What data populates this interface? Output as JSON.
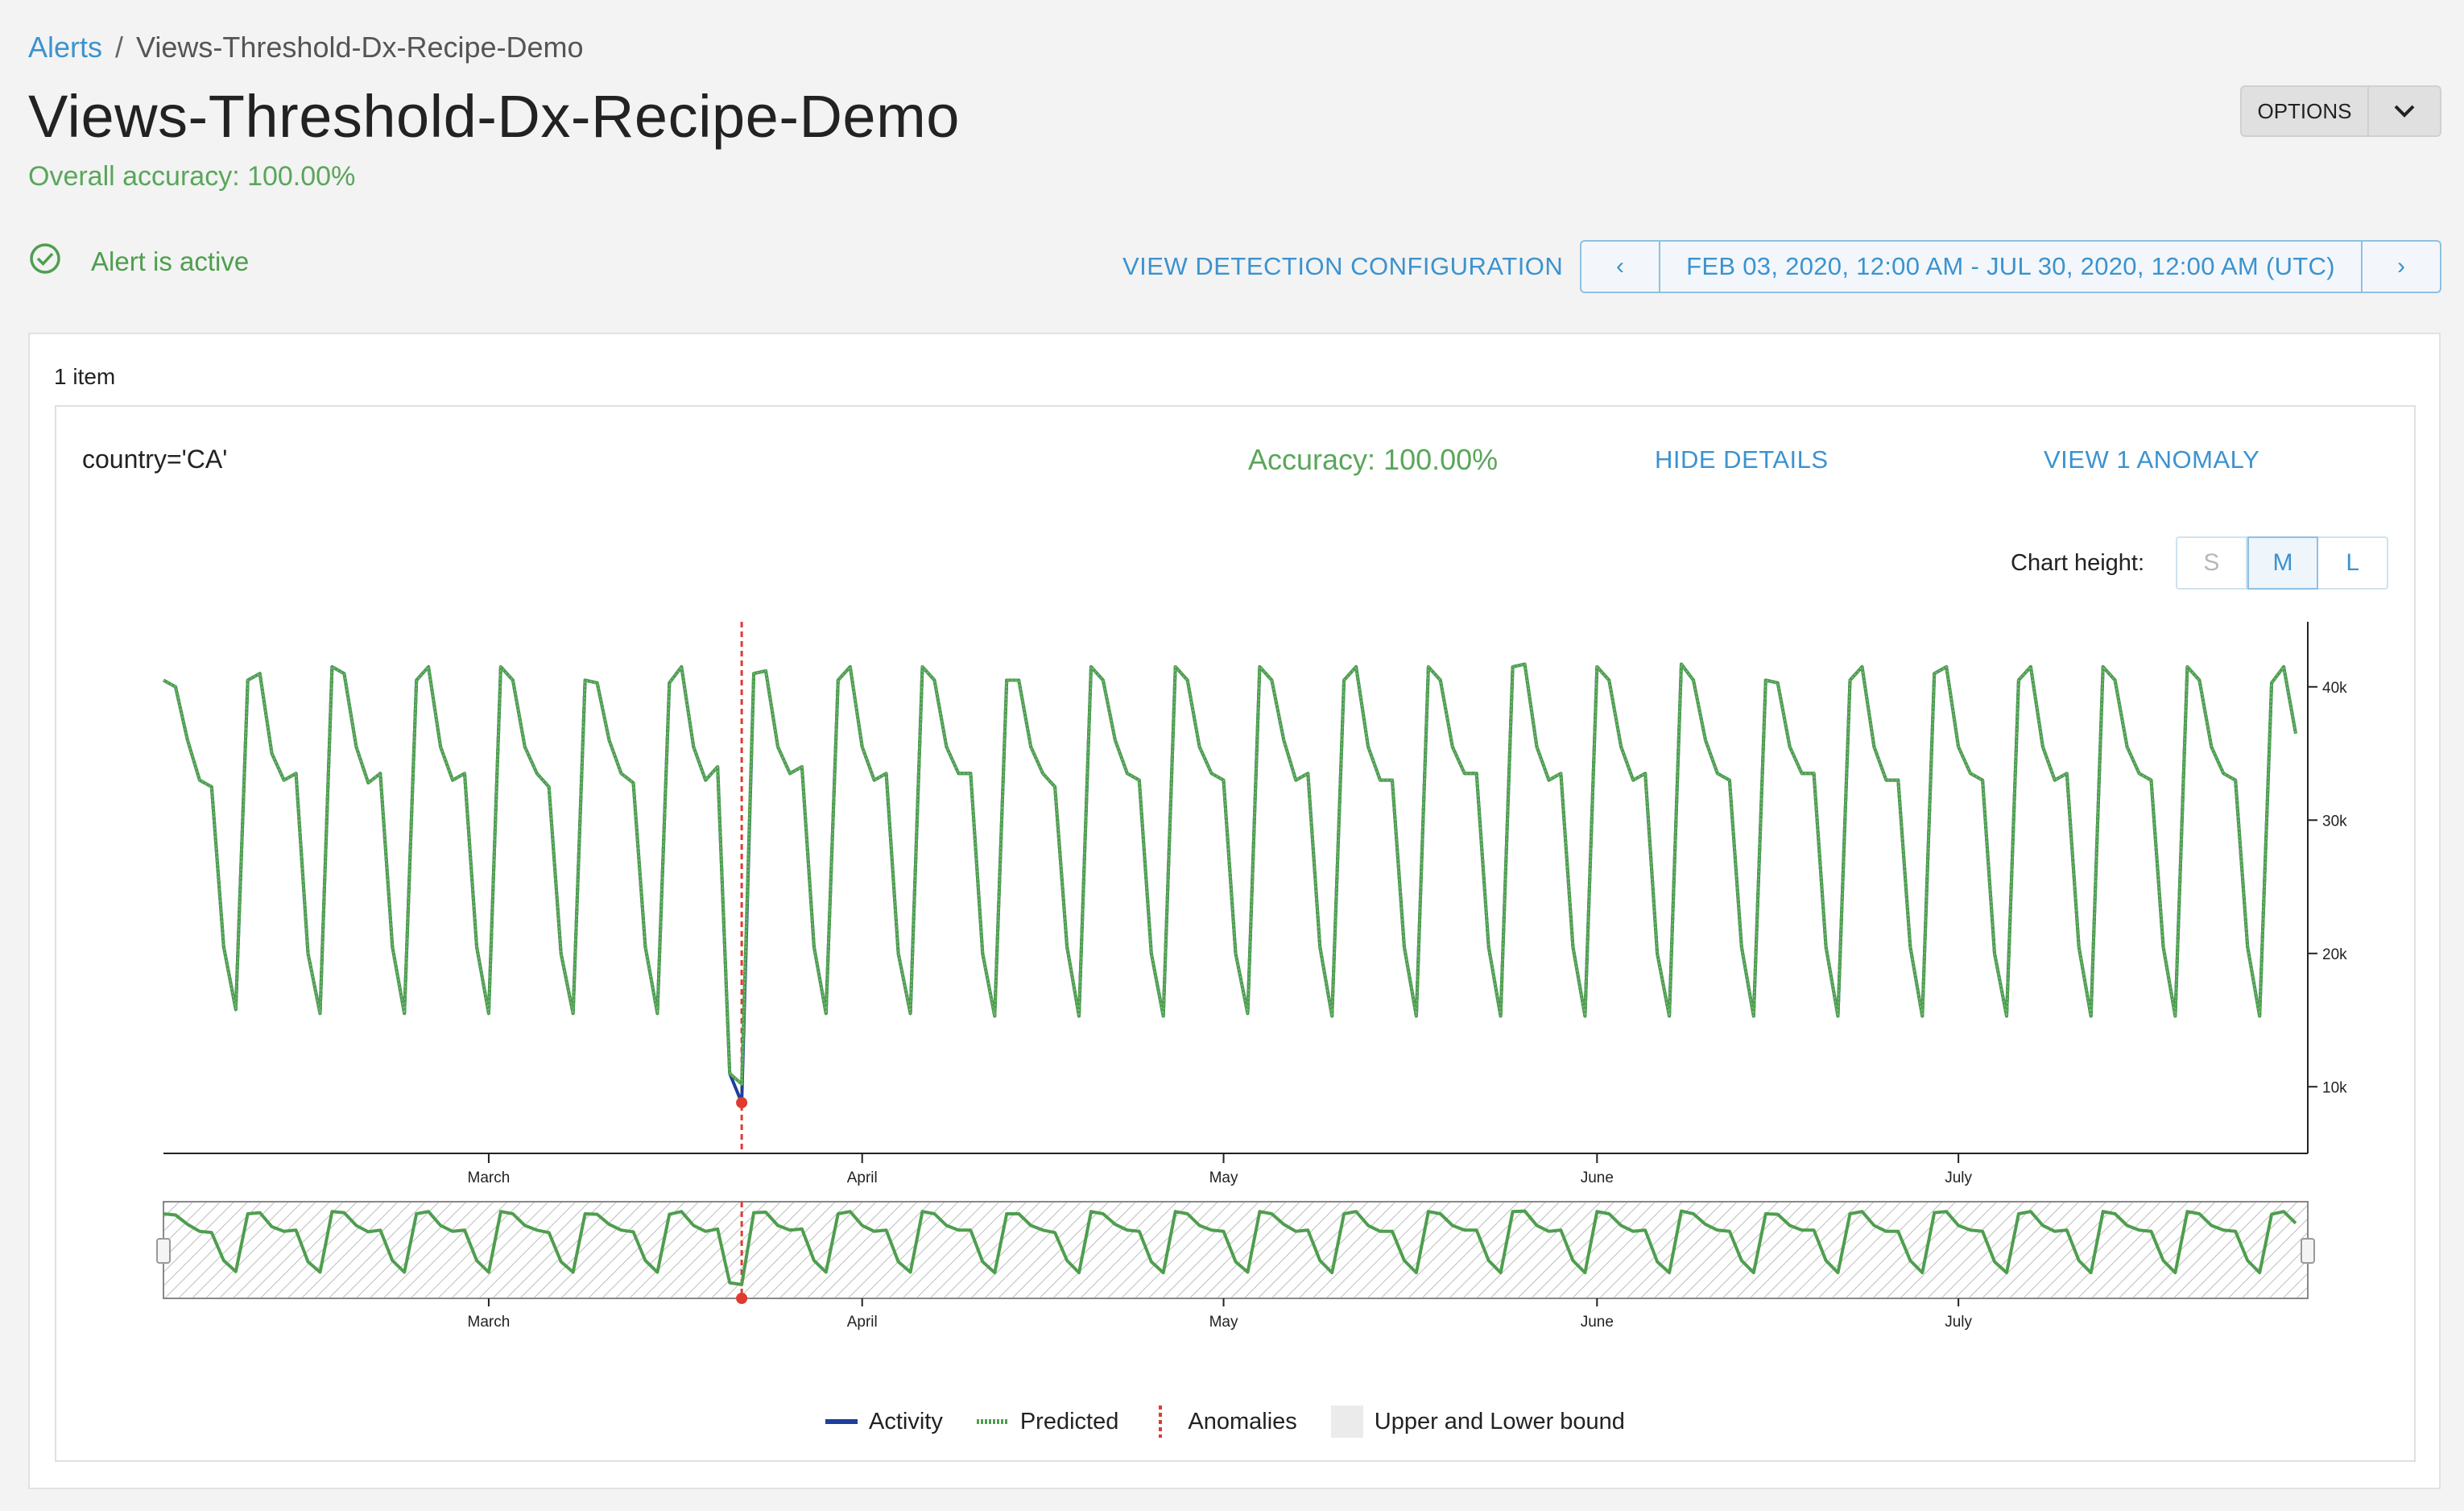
{
  "breadcrumb": {
    "root": "Alerts",
    "separator": "/",
    "current": "Views-Threshold-Dx-Recipe-Demo"
  },
  "page": {
    "title": "Views-Threshold-Dx-Recipe-Demo",
    "overall_accuracy": "Overall accuracy: 100.00%",
    "status": "Alert is active",
    "options_label": "OPTIONS",
    "view_detection": "VIEW DETECTION CONFIGURATION",
    "date_range": "FEB 03, 2020, 12:00 AM - JUL 30, 2020, 12:00 AM (UTC)",
    "prev_icon": "‹",
    "next_icon": "›"
  },
  "results": {
    "count": "1 item",
    "metric_label": "country='CA'",
    "accuracy": "Accuracy: 100.00%",
    "hide_details": "HIDE DETAILS",
    "view_anomaly": "VIEW 1 ANOMALY",
    "chart_height_label": "Chart height:",
    "chart_height_options": [
      "S",
      "M",
      "L"
    ],
    "chart_height_selected": "M"
  },
  "colors": {
    "activity": "#1f3f9a",
    "predicted": "#4e9e4e",
    "anomaly": "#e03b2f",
    "link": "#3b93cf",
    "success": "#5aa65a"
  },
  "legend": [
    "Activity",
    "Predicted",
    "Anomalies",
    "Upper and Lower bound"
  ],
  "chart_data": {
    "type": "line",
    "title": "",
    "x_range": [
      "2020-02-03",
      "2020-07-30"
    ],
    "x_tick_labels": [
      "March",
      "April",
      "May",
      "June",
      "July"
    ],
    "y_tick_labels": [
      "10k",
      "20k",
      "30k",
      "40k"
    ],
    "ylim": [
      5000,
      45000
    ],
    "weekly_pattern_note_free": true,
    "series": [
      {
        "name": "Activity",
        "start_date": "2020-02-03",
        "values": [
          40500,
          40000,
          36000,
          33000,
          32500,
          20500,
          15800,
          40500,
          41000,
          35000,
          33000,
          33500,
          20000,
          15500,
          41500,
          41000,
          35500,
          32800,
          33500,
          20500,
          15500,
          40500,
          41500,
          35500,
          33000,
          33500,
          20500,
          15500,
          41500,
          40500,
          35500,
          33500,
          32500,
          20000,
          15500,
          40500,
          40300,
          36000,
          33500,
          32800,
          20500,
          15500,
          40300,
          41500,
          35500,
          33000,
          34000,
          11000,
          8800,
          41000,
          41200,
          35500,
          33500,
          34000,
          20500,
          15500,
          40500,
          41500,
          35500,
          33000,
          33500,
          20000,
          15500,
          41500,
          40500,
          35500,
          33500,
          33500,
          20000,
          15300,
          40500,
          40500,
          35500,
          33500,
          32500,
          20500,
          15300,
          41500,
          40500,
          36000,
          33500,
          33000,
          20000,
          15300,
          41500,
          40500,
          35500,
          33500,
          33000,
          20000,
          15500,
          41500,
          40500,
          36000,
          33000,
          33500,
          20500,
          15300,
          40500,
          41500,
          35500,
          33000,
          33000,
          20500,
          15300,
          41500,
          40500,
          35500,
          33500,
          33500,
          20500,
          15300,
          41500,
          41700,
          35500,
          33000,
          33500,
          20500,
          15300,
          41500,
          40500,
          35500,
          33000,
          33500,
          20000,
          15300,
          41700,
          40500,
          36000,
          33500,
          33000,
          20500,
          15300,
          40500,
          40300,
          35500,
          33500,
          33500,
          20500,
          15300,
          40500,
          41500,
          35500,
          33000,
          33000,
          20500,
          15300,
          41000,
          41500,
          35500,
          33500,
          33000,
          20000,
          15300,
          40500,
          41500,
          35500,
          33000,
          33500,
          20500,
          15300,
          41500,
          40500,
          35500,
          33500,
          33000,
          20500,
          15300,
          41500,
          40500,
          35500,
          33500,
          33000,
          20500,
          15300,
          40300,
          41500,
          36500
        ]
      },
      {
        "name": "Predicted",
        "start_date": "2020-02-03",
        "values": [
          40500,
          40000,
          36000,
          33000,
          32500,
          20500,
          15800,
          40500,
          41000,
          35000,
          33000,
          33500,
          20000,
          15500,
          41500,
          41000,
          35500,
          32800,
          33500,
          20500,
          15500,
          40500,
          41500,
          35500,
          33000,
          33500,
          20500,
          15500,
          41500,
          40500,
          35500,
          33500,
          32500,
          20000,
          15500,
          40500,
          40300,
          36000,
          33500,
          32800,
          20500,
          15500,
          40300,
          41500,
          35500,
          33000,
          34000,
          11000,
          10200,
          41000,
          41200,
          35500,
          33500,
          34000,
          20500,
          15500,
          40500,
          41500,
          35500,
          33000,
          33500,
          20000,
          15500,
          41500,
          40500,
          35500,
          33500,
          33500,
          20000,
          15300,
          40500,
          40500,
          35500,
          33500,
          32500,
          20500,
          15300,
          41500,
          40500,
          36000,
          33500,
          33000,
          20000,
          15300,
          41500,
          40500,
          35500,
          33500,
          33000,
          20000,
          15500,
          41500,
          40500,
          36000,
          33000,
          33500,
          20500,
          15300,
          40500,
          41500,
          35500,
          33000,
          33000,
          20500,
          15300,
          41500,
          40500,
          35500,
          33500,
          33500,
          20500,
          15300,
          41500,
          41700,
          35500,
          33000,
          33500,
          20500,
          15300,
          41500,
          40500,
          35500,
          33000,
          33500,
          20000,
          15300,
          41700,
          40500,
          36000,
          33500,
          33000,
          20500,
          15300,
          40500,
          40300,
          35500,
          33500,
          33500,
          20500,
          15300,
          40500,
          41500,
          35500,
          33000,
          33000,
          20500,
          15300,
          41000,
          41500,
          35500,
          33500,
          33000,
          20000,
          15300,
          40500,
          41500,
          35500,
          33000,
          33500,
          20500,
          15300,
          41500,
          40500,
          35500,
          33500,
          33000,
          20500,
          15300,
          41500,
          40500,
          35500,
          33500,
          33000,
          20500,
          15300,
          40300,
          41500,
          36500
        ]
      }
    ],
    "anomalies": [
      {
        "date": "2020-03-22",
        "value": 8800
      }
    ]
  }
}
